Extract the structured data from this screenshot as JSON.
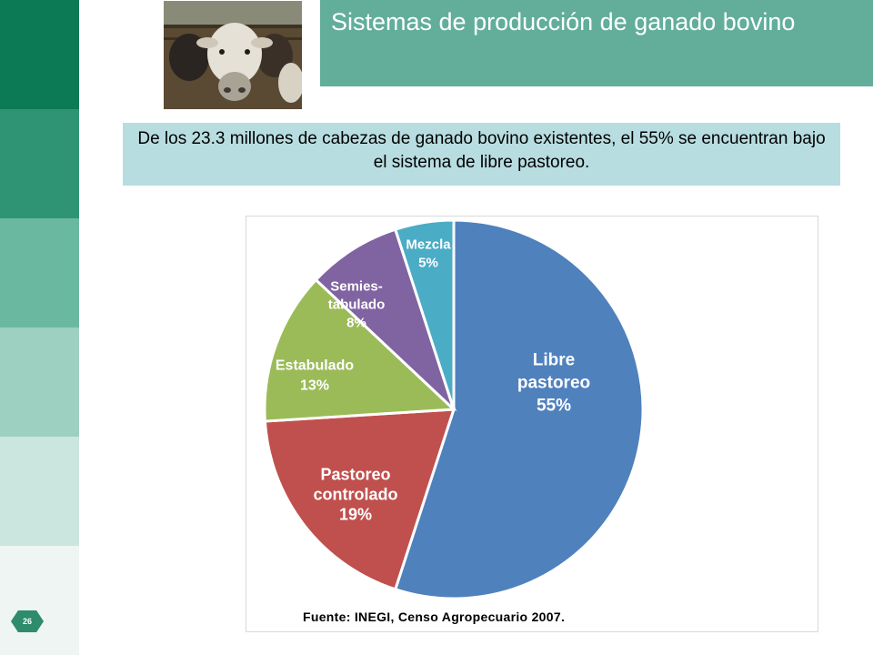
{
  "slide": {
    "title": "Sistemas de producción de ganado bovino",
    "summary": "De los 23.3 millones de cabezas de ganado bovino existentes, el 55% se encuentran bajo el sistema de libre pastoreo.",
    "page_number": "26",
    "source": "Fuente: INEGI, Censo Agropecuario 2007.",
    "sidebar_colors": [
      "#0c7a55",
      "#2f9473",
      "#6ab8a0",
      "#9dd0c0",
      "#cbe6de",
      "#eef5f2"
    ]
  },
  "chart_data": {
    "type": "pie",
    "slices": [
      {
        "label_lines": [
          "Libre",
          "pastoreo",
          "55%"
        ],
        "value": 55,
        "color": "#4f81bd"
      },
      {
        "label_lines": [
          "Pastoreo",
          "controlado",
          "19%"
        ],
        "value": 19,
        "color": "#c0504d"
      },
      {
        "label_lines": [
          "Estabulado",
          "13%"
        ],
        "value": 13,
        "color": "#9bbb59"
      },
      {
        "label_lines": [
          "Semies-",
          "tabulado",
          "8%"
        ],
        "value": 8,
        "color": "#8064a2"
      },
      {
        "label_lines": [
          "Mezcla",
          "5%"
        ],
        "value": 5,
        "color": "#4bacc6"
      }
    ]
  }
}
